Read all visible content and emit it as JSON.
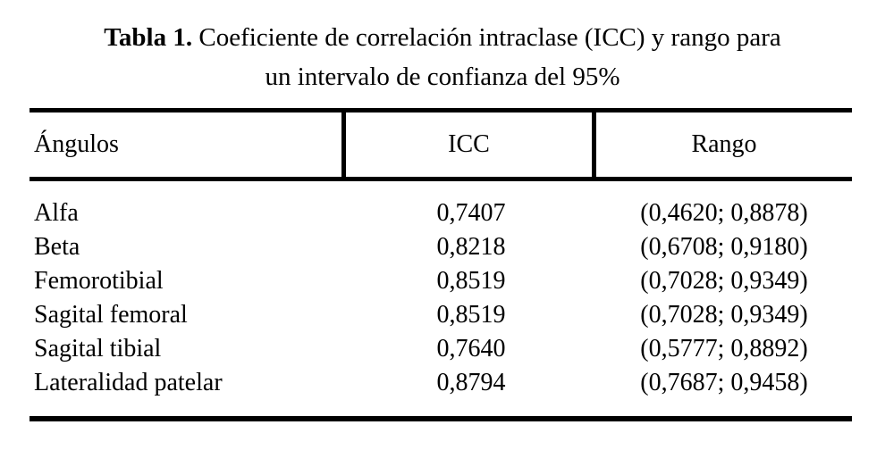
{
  "caption": {
    "label": "Tabla 1.",
    "line1": "Coeficiente de correlación intraclase (ICC) y rango para",
    "line2": "un intervalo de confianza del 95%"
  },
  "table": {
    "columns": [
      "Ángulos",
      "ICC",
      "Rango"
    ],
    "rows": [
      {
        "angle": "Alfa",
        "icc": "0,7407",
        "range": "(0,4620; 0,8878)"
      },
      {
        "angle": "Beta",
        "icc": "0,8218",
        "range": "(0,6708; 0,9180)"
      },
      {
        "angle": "Femorotibial",
        "icc": "0,8519",
        "range": "(0,7028; 0,9349)"
      },
      {
        "angle": "Sagital femoral",
        "icc": "0,8519",
        "range": "(0,7028; 0,9349)"
      },
      {
        "angle": "Sagital tibial",
        "icc": "0,7640",
        "range": "(0,5777; 0,8892)"
      },
      {
        "angle": "Lateralidad patelar",
        "icc": "0,8794",
        "range": "(0,7687; 0,9458)"
      }
    ]
  },
  "colors": {
    "text": "#000000",
    "background": "#ffffff",
    "rule": "#000000"
  }
}
